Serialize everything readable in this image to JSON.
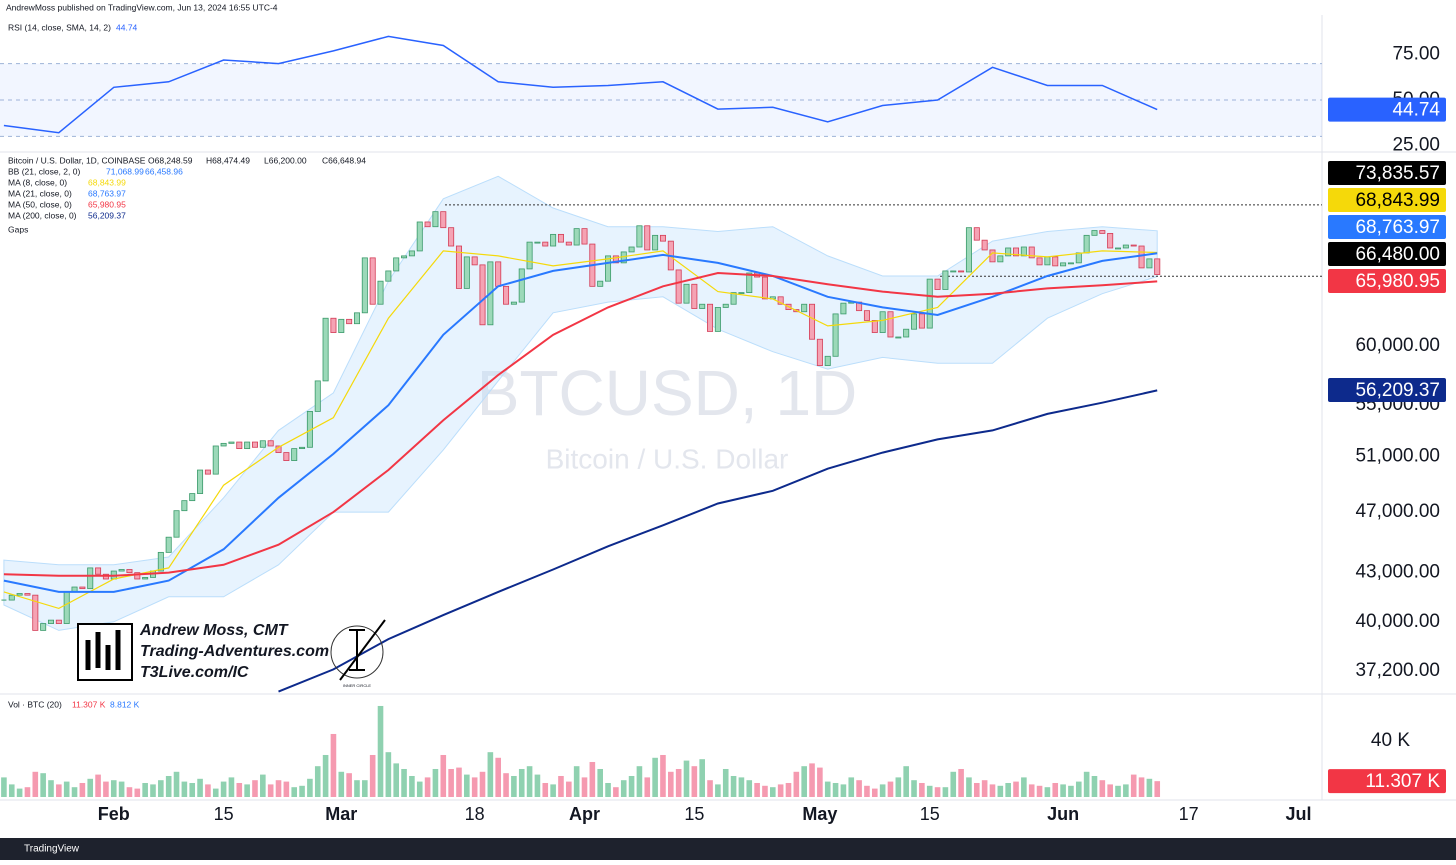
{
  "header": "AndrewMoss published on TradingView.com, Jun 13, 2024 16:55 UTC-4",
  "chart_data": [
    {
      "type": "line",
      "legend": "RSI (14, close, SMA, 14, 2)",
      "legend_value": "44.74",
      "color": "#2962ff",
      "ylim": [
        22.5,
        94
      ],
      "yticks": [
        {
          "value": 75,
          "label": "75.00"
        },
        {
          "value": 50,
          "label": "50.00"
        },
        {
          "value": 25,
          "label": "25.00"
        }
      ],
      "levels": [
        30,
        50,
        70
      ],
      "x": [
        0,
        7,
        14,
        21,
        28,
        35,
        42,
        49,
        56,
        63,
        70,
        77,
        84,
        91,
        98,
        105,
        112,
        119,
        126,
        133,
        140,
        147
      ],
      "values": [
        36,
        32,
        57,
        60,
        72,
        70,
        77,
        85,
        80,
        60,
        57,
        58,
        60,
        45,
        46,
        38,
        47,
        50,
        68,
        58,
        58,
        44.74
      ],
      "tag": {
        "value": 44.74,
        "label": "44.74"
      }
    },
    {
      "type": "candlestick",
      "legend": "Bitcoin / U.S. Dollar, 1D, COINBASE",
      "ohlc": [
        "O68,248.59",
        "H68,474.49",
        "L66,200.00",
        "C66,648.94"
      ],
      "log_scale": true,
      "ylim": [
        36080,
        79450
      ],
      "yticks": [
        {
          "value": 37200,
          "label": "37,200.00"
        },
        {
          "value": 40000,
          "label": "40,000.00"
        },
        {
          "value": 43000,
          "label": "43,000.00"
        },
        {
          "value": 47000,
          "label": "47,000.00"
        },
        {
          "value": 51000,
          "label": "51,000.00"
        },
        {
          "value": 55000,
          "label": "55,000.00"
        },
        {
          "value": 60000,
          "label": "60,000.00"
        }
      ],
      "up_color": "#9cd9b9",
      "down_color": "#f5a3b4",
      "close": [
        41300,
        41600,
        41700,
        41600,
        39500,
        39900,
        40100,
        39900,
        41800,
        42100,
        42000,
        43300,
        42900,
        42600,
        43100,
        43200,
        43000,
        42600,
        42700,
        43100,
        44300,
        45300,
        47100,
        47800,
        48300,
        50000,
        49700,
        51800,
        52000,
        52100,
        51600,
        52100,
        51700,
        52200,
        51800,
        51300,
        50700,
        51600,
        51700,
        54500,
        57000,
        62500,
        61200,
        62400,
        62000,
        63000,
        68300,
        63800,
        66000,
        67000,
        68300,
        68500,
        69000,
        72000,
        71500,
        73100,
        71400,
        69500,
        65300,
        68400,
        67600,
        61900,
        67900,
        65500,
        63800,
        64000,
        67200,
        69900,
        69900,
        69500,
        70700,
        69900,
        69600,
        71300,
        69700,
        65500,
        66000,
        68500,
        67800,
        68900,
        69400,
        71600,
        69100,
        70600,
        70000,
        67100,
        63900,
        65700,
        63400,
        63800,
        61300,
        63500,
        63800,
        64900,
        64900,
        66800,
        66400,
        64300,
        64500,
        63800,
        63300,
        63100,
        63800,
        60600,
        58300,
        59100,
        62900,
        63900,
        64000,
        63200,
        62300,
        61200,
        63100,
        60800,
        60800,
        61500,
        62900,
        61600,
        66200,
        65200,
        67000,
        67000,
        66900,
        71400,
        70100,
        69100,
        67900,
        68500,
        69300,
        68500,
        69400,
        68300,
        67600,
        68400,
        67500,
        67800,
        67800,
        68800,
        70600,
        71100,
        70800,
        69300,
        69300,
        69600,
        69500,
        67300,
        68200,
        66648.94
      ],
      "line_x": [
        0,
        7,
        14,
        21,
        28,
        35,
        42,
        49,
        56,
        63,
        70,
        77,
        84,
        91,
        98,
        105,
        112,
        119,
        126,
        133,
        140,
        147
      ],
      "bands": {
        "legend": "BB (21, close, 2, 0)",
        "upper_label": "71,068.99",
        "lower_label": "66,458.96",
        "color": "#bbdefb",
        "upper": [
          43800,
          43500,
          43500,
          44000,
          48000,
          53000,
          56000,
          66000,
          74500,
          77000,
          73500,
          71500,
          71500,
          71000,
          71500,
          68500,
          66500,
          66500,
          70000,
          71000,
          71500,
          71068.99
        ],
        "lower": [
          41000,
          39500,
          40000,
          41500,
          41500,
          43500,
          47000,
          47000,
          51500,
          57000,
          63000,
          64000,
          64500,
          61500,
          59500,
          58000,
          59000,
          58500,
          58500,
          62500,
          64800,
          66458.96
        ]
      },
      "series": [
        {
          "name": "MA (8, close, 0)",
          "value_label": "68,843.99",
          "color": "#f5d90a",
          "values": [
            41800,
            40800,
            42600,
            43300,
            48900,
            51700,
            54000,
            62500,
            69000,
            68500,
            67500,
            68200,
            69000,
            65000,
            64300,
            61800,
            62300,
            63500,
            68800,
            68400,
            69000,
            68843.99
          ]
        },
        {
          "name": "MA (21, close, 0)",
          "value_label": "68,763.97",
          "color": "#2979ff",
          "values": [
            42500,
            41800,
            41800,
            42500,
            44500,
            48000,
            51200,
            55000,
            61000,
            65500,
            67000,
            67800,
            68600,
            67800,
            66500,
            64500,
            63500,
            62800,
            64500,
            66500,
            68000,
            68763.97
          ]
        },
        {
          "name": "MA (50, close, 0)",
          "value_label": "65,980.95",
          "color": "#f23645",
          "values": [
            42900,
            42800,
            42800,
            43000,
            43500,
            44800,
            47000,
            50000,
            53800,
            57500,
            61000,
            63500,
            65500,
            66800,
            66500,
            65700,
            65000,
            64500,
            64800,
            65300,
            65600,
            65980.95
          ]
        },
        {
          "name": "MA (200, close, 0)",
          "value_label": "56,209.37",
          "color": "#0d2a8c",
          "values": [
            null,
            null,
            null,
            null,
            null,
            36100,
            37300,
            39000,
            40400,
            41800,
            43200,
            44700,
            46100,
            47600,
            48500,
            50100,
            51300,
            52300,
            53000,
            54300,
            55200,
            56209.37
          ]
        }
      ],
      "gaps": "Gaps",
      "levels": [
        {
          "value": 73835.57,
          "label": "73,835.57"
        },
        {
          "value": 66480,
          "label": "66,480.00"
        }
      ],
      "tags": [
        {
          "value": 73835.57,
          "label": "73,835.57",
          "color": "#000000"
        },
        {
          "value": 68843.99,
          "label": "68,843.99",
          "color": "#f5d90a"
        },
        {
          "value": 68763.97,
          "label": "68,763.97",
          "color": "#2979ff"
        },
        {
          "value": 66480,
          "label": "66,480.00",
          "color": "#000000"
        },
        {
          "value": 65980.95,
          "label": "65,980.95",
          "color": "#f23645"
        },
        {
          "value": 56209.37,
          "label": "56,209.37",
          "color": "#0d2a8c"
        }
      ]
    },
    {
      "type": "bar",
      "legend": "Vol · BTC (20)",
      "legend_values": [
        "11.307 K",
        "8.812 K"
      ],
      "ylim": [
        0,
        71.4
      ],
      "yticks": [
        {
          "value": 40,
          "label": "40 K"
        }
      ],
      "values": [
        14,
        9,
        6,
        7,
        18,
        17,
        12,
        9,
        11,
        7,
        10,
        13,
        16,
        11,
        12,
        11,
        7,
        6,
        10,
        9,
        12,
        15,
        18,
        11,
        10,
        13,
        9,
        6,
        11,
        14,
        10,
        9,
        12,
        16,
        9,
        12,
        11,
        7,
        8,
        13,
        22,
        30,
        45,
        18,
        17,
        12,
        12,
        30,
        65,
        32,
        24,
        20,
        15,
        11,
        14,
        20,
        30,
        20,
        21,
        16,
        14,
        18,
        32,
        28,
        17,
        15,
        20,
        22,
        16,
        10,
        9,
        15,
        11,
        22,
        14,
        25,
        20,
        10,
        7,
        12,
        15,
        22,
        14,
        28,
        30,
        18,
        20,
        26,
        22,
        27,
        12,
        9,
        20,
        15,
        14,
        12,
        10,
        8,
        7,
        9,
        10,
        18,
        22,
        24,
        21,
        11,
        10,
        9,
        14,
        12,
        8,
        6,
        9,
        11,
        14,
        22,
        12,
        10,
        8,
        7,
        7,
        18,
        20,
        14,
        10,
        12,
        9,
        8,
        10,
        11,
        14,
        9,
        8,
        7,
        10,
        9,
        8,
        11,
        18,
        15,
        12,
        9,
        8,
        9,
        16,
        14,
        13,
        11.307
      ],
      "tag": {
        "value": 11.307,
        "label": "11.307 K"
      }
    }
  ],
  "x_axis": {
    "xlim": [
      -0.5,
      168
    ],
    "xticks": [
      {
        "value": 14,
        "label": "Feb"
      },
      {
        "value": 28,
        "label": "15"
      },
      {
        "value": 43,
        "label": "Mar"
      },
      {
        "value": 60,
        "label": "18"
      },
      {
        "value": 74,
        "label": "Apr"
      },
      {
        "value": 88,
        "label": "15"
      },
      {
        "value": 104,
        "label": "May"
      },
      {
        "value": 118,
        "label": "15"
      },
      {
        "value": 135,
        "label": "Jun"
      },
      {
        "value": 151,
        "label": "17"
      },
      {
        "value": 165,
        "label": "Jul"
      }
    ]
  },
  "watermark": {
    "symbol": "BTCUSD, 1D",
    "name": "Bitcoin / U.S. Dollar"
  },
  "branding": {
    "name": "Andrew Moss, CMT",
    "site": "Trading-Adventures.com",
    "link": "T3Live.com/IC",
    "logo": "INNER CIRCLE"
  },
  "footer": "TradingView"
}
